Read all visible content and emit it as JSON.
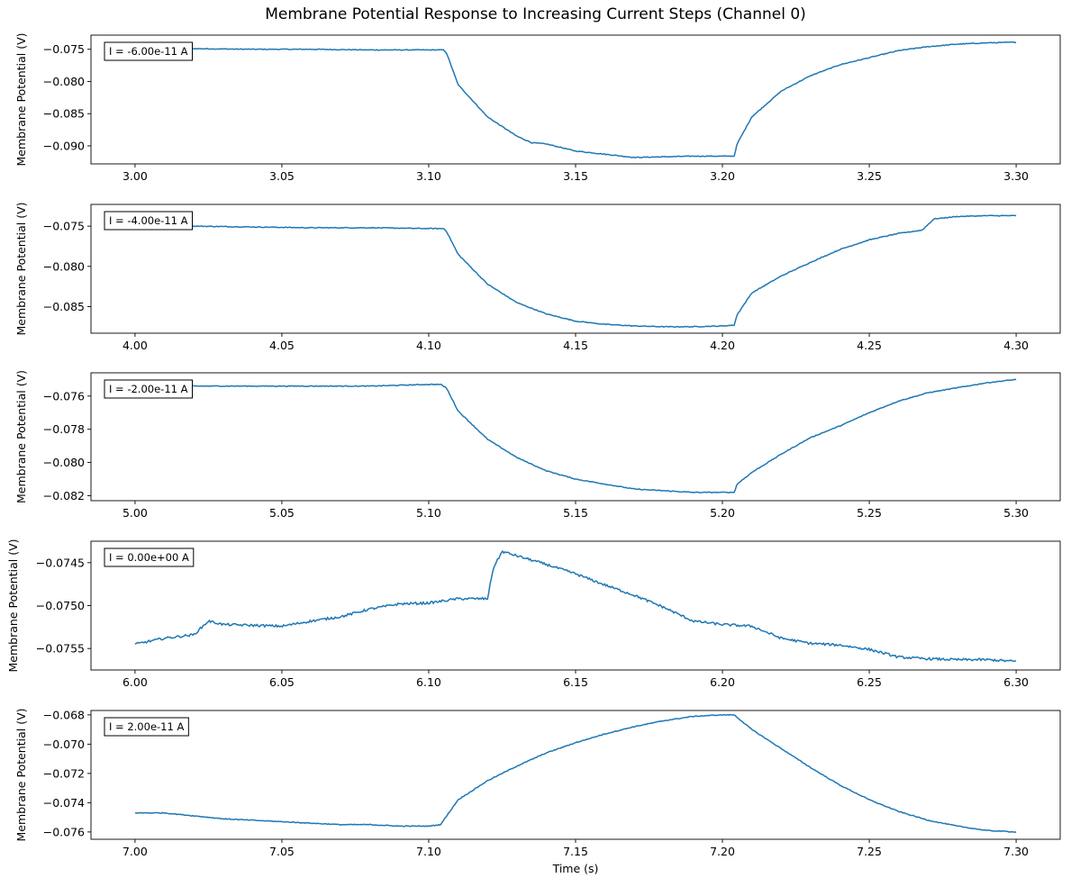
{
  "figure": {
    "title": "Membrane Potential Response to Increasing Current Steps (Channel 0)",
    "xlabel": "Time (s)",
    "line_color": "#1f77b4"
  },
  "chart_data": [
    {
      "type": "line",
      "annotation": "I = -6.00e-11 A",
      "xlabel": "",
      "ylabel": "Membrane Potential (V)",
      "xlim": [
        2.985,
        3.315
      ],
      "ylim": [
        -0.0928,
        -0.0728
      ],
      "xticks": [
        3.0,
        3.05,
        3.1,
        3.15,
        3.2,
        3.25,
        3.3
      ],
      "xtick_labels": [
        "3.00",
        "3.05",
        "3.10",
        "3.15",
        "3.20",
        "3.25",
        "3.30"
      ],
      "yticks": [
        -0.075,
        -0.08,
        -0.085,
        -0.09
      ],
      "ytick_labels": [
        "−0.075",
        "−0.080",
        "−0.085",
        "−0.090"
      ],
      "series": [
        {
          "x": [
            3.0,
            3.02,
            3.04,
            3.06,
            3.08,
            3.1,
            3.105,
            3.106,
            3.11,
            3.12,
            3.13,
            3.135,
            3.14,
            3.15,
            3.16,
            3.17,
            3.18,
            3.19,
            3.2,
            3.204,
            3.205,
            3.21,
            3.22,
            3.23,
            3.24,
            3.25,
            3.26,
            3.27,
            3.28,
            3.29,
            3.3
          ],
          "y": [
            -0.0749,
            -0.0749,
            -0.075,
            -0.075,
            -0.0751,
            -0.0751,
            -0.0751,
            -0.0755,
            -0.0805,
            -0.0855,
            -0.0885,
            -0.0895,
            -0.0897,
            -0.0908,
            -0.0913,
            -0.0918,
            -0.0917,
            -0.0916,
            -0.0916,
            -0.0916,
            -0.0897,
            -0.0855,
            -0.0815,
            -0.0791,
            -0.0774,
            -0.0763,
            -0.0752,
            -0.0746,
            -0.0742,
            -0.074,
            -0.0739
          ]
        }
      ]
    },
    {
      "type": "line",
      "annotation": "I = -4.00e-11 A",
      "xlabel": "",
      "ylabel": "Membrane Potential (V)",
      "xlim": [
        3.985,
        4.315
      ],
      "ylim": [
        -0.0883,
        -0.0723
      ],
      "xticks": [
        4.0,
        4.05,
        4.1,
        4.15,
        4.2,
        4.25,
        4.3
      ],
      "xtick_labels": [
        "4.00",
        "4.05",
        "4.10",
        "4.15",
        "4.20",
        "4.25",
        "4.30"
      ],
      "yticks": [
        -0.075,
        -0.08,
        -0.085
      ],
      "ytick_labels": [
        "−0.075",
        "−0.080",
        "−0.085"
      ],
      "series": [
        {
          "x": [
            4.0,
            4.02,
            4.04,
            4.06,
            4.08,
            4.1,
            4.105,
            4.106,
            4.11,
            4.12,
            4.13,
            4.14,
            4.15,
            4.16,
            4.17,
            4.18,
            4.19,
            4.2,
            4.204,
            4.205,
            4.21,
            4.22,
            4.23,
            4.24,
            4.25,
            4.26,
            4.268,
            4.272,
            4.28,
            4.29,
            4.3
          ],
          "y": [
            -0.0749,
            -0.075,
            -0.0751,
            -0.0752,
            -0.0752,
            -0.0753,
            -0.0753,
            -0.0756,
            -0.0785,
            -0.0822,
            -0.0845,
            -0.0859,
            -0.0868,
            -0.0872,
            -0.0874,
            -0.0875,
            -0.0875,
            -0.0874,
            -0.0873,
            -0.086,
            -0.0833,
            -0.0812,
            -0.0795,
            -0.0779,
            -0.0767,
            -0.0759,
            -0.0755,
            -0.0741,
            -0.0738,
            -0.0737,
            -0.0737
          ]
        }
      ]
    },
    {
      "type": "line",
      "annotation": "I = -2.00e-11 A",
      "xlabel": "",
      "ylabel": "Membrane Potential (V)",
      "xlim": [
        4.985,
        5.315
      ],
      "ylim": [
        -0.0823,
        -0.0746
      ],
      "xticks": [
        5.0,
        5.05,
        5.1,
        5.15,
        5.2,
        5.25,
        5.3
      ],
      "xtick_labels": [
        "5.00",
        "5.05",
        "5.10",
        "5.15",
        "5.20",
        "5.25",
        "5.30"
      ],
      "yticks": [
        -0.076,
        -0.078,
        -0.08,
        -0.082
      ],
      "ytick_labels": [
        "−0.076",
        "−0.078",
        "−0.080",
        "−0.082"
      ],
      "series": [
        {
          "x": [
            5.0,
            5.02,
            5.04,
            5.06,
            5.08,
            5.1,
            5.104,
            5.106,
            5.11,
            5.12,
            5.13,
            5.14,
            5.15,
            5.16,
            5.17,
            5.18,
            5.19,
            5.2,
            5.204,
            5.205,
            5.21,
            5.22,
            5.23,
            5.24,
            5.25,
            5.26,
            5.27,
            5.28,
            5.29,
            5.3
          ],
          "y": [
            -0.0753,
            -0.0754,
            -0.0754,
            -0.0754,
            -0.0754,
            -0.0753,
            -0.0753,
            -0.0755,
            -0.0769,
            -0.0786,
            -0.0797,
            -0.0805,
            -0.081,
            -0.0813,
            -0.0816,
            -0.0817,
            -0.0818,
            -0.0818,
            -0.0818,
            -0.0813,
            -0.0806,
            -0.0795,
            -0.0785,
            -0.0778,
            -0.077,
            -0.0763,
            -0.0758,
            -0.0755,
            -0.0752,
            -0.075
          ]
        }
      ]
    },
    {
      "type": "line",
      "annotation": "I = 0.00e+00 A",
      "xlabel": "",
      "ylabel": "Membrane Potential (V)",
      "xlim": [
        5.985,
        6.315
      ],
      "ylim": [
        -0.07575,
        -0.07425
      ],
      "xticks": [
        6.0,
        6.05,
        6.1,
        6.15,
        6.2,
        6.25,
        6.3
      ],
      "xtick_labels": [
        "6.00",
        "6.05",
        "6.10",
        "6.15",
        "6.20",
        "6.25",
        "6.30"
      ],
      "yticks": [
        -0.0745,
        -0.075,
        -0.0755
      ],
      "ytick_labels": [
        "−0.0745",
        "−0.0750",
        "−0.0755"
      ],
      "series": [
        {
          "x": [
            6.0,
            6.01,
            6.02,
            6.025,
            6.03,
            6.04,
            6.05,
            6.06,
            6.07,
            6.08,
            6.09,
            6.1,
            6.11,
            6.12,
            6.122,
            6.125,
            6.13,
            6.14,
            6.15,
            6.16,
            6.17,
            6.18,
            6.19,
            6.2,
            6.21,
            6.22,
            6.23,
            6.24,
            6.25,
            6.26,
            6.27,
            6.28,
            6.29,
            6.3
          ],
          "y": [
            -0.07545,
            -0.07538,
            -0.07534,
            -0.07518,
            -0.07522,
            -0.07523,
            -0.07524,
            -0.07518,
            -0.07513,
            -0.07504,
            -0.07498,
            -0.07497,
            -0.07492,
            -0.07492,
            -0.07456,
            -0.07437,
            -0.07442,
            -0.07452,
            -0.07463,
            -0.07476,
            -0.07488,
            -0.07502,
            -0.07518,
            -0.07522,
            -0.07524,
            -0.07538,
            -0.07544,
            -0.07546,
            -0.07551,
            -0.0756,
            -0.07562,
            -0.07563,
            -0.07563,
            -0.07565
          ]
        }
      ]
    },
    {
      "type": "line",
      "annotation": "I = 2.00e-11 A",
      "xlabel": "Time (s)",
      "ylabel": "Membrane Potential (V)",
      "xlim": [
        6.985,
        7.315
      ],
      "ylim": [
        -0.0765,
        -0.0677
      ],
      "xticks": [
        7.0,
        7.05,
        7.1,
        7.15,
        7.2,
        7.25,
        7.3
      ],
      "xtick_labels": [
        "7.00",
        "7.05",
        "7.10",
        "7.15",
        "7.20",
        "7.25",
        "7.30"
      ],
      "yticks": [
        -0.068,
        -0.07,
        -0.072,
        -0.074,
        -0.076
      ],
      "ytick_labels": [
        "−0.068",
        "−0.070",
        "−0.072",
        "−0.074",
        "−0.076"
      ],
      "series": [
        {
          "x": [
            7.0,
            7.01,
            7.02,
            7.03,
            7.04,
            7.05,
            7.06,
            7.07,
            7.08,
            7.09,
            7.1,
            7.104,
            7.11,
            7.12,
            7.13,
            7.14,
            7.15,
            7.16,
            7.17,
            7.18,
            7.19,
            7.2,
            7.204,
            7.21,
            7.22,
            7.23,
            7.24,
            7.25,
            7.26,
            7.27,
            7.28,
            7.29,
            7.3
          ],
          "y": [
            -0.0747,
            -0.0747,
            -0.0749,
            -0.0751,
            -0.0752,
            -0.0753,
            -0.0754,
            -0.0755,
            -0.0755,
            -0.0756,
            -0.0756,
            -0.0755,
            -0.0738,
            -0.0725,
            -0.0715,
            -0.0706,
            -0.0699,
            -0.0693,
            -0.0688,
            -0.0684,
            -0.0681,
            -0.068,
            -0.068,
            -0.069,
            -0.0703,
            -0.0716,
            -0.0728,
            -0.0738,
            -0.0746,
            -0.0752,
            -0.0756,
            -0.0759,
            -0.076
          ]
        }
      ]
    }
  ]
}
